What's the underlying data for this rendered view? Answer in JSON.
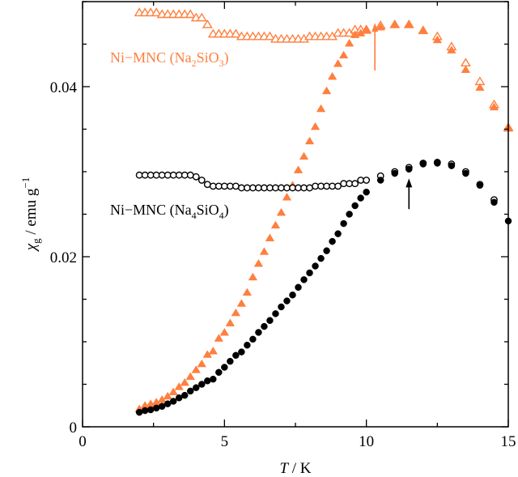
{
  "chart_data": {
    "type": "scatter",
    "xlabel_italic": "T",
    "xlabel_unit": " / K",
    "ylabel_symbol": "χ",
    "ylabel_sub": "g",
    "ylabel_unit": " / emu g",
    "ylabel_sup": "−1",
    "xlim": [
      0,
      15
    ],
    "ylim": [
      0,
      0.05
    ],
    "x_major_ticks": [
      0,
      5,
      10,
      15
    ],
    "x_tick_labels": [
      "0",
      "5",
      "10",
      "15"
    ],
    "x_minor_step": 2.5,
    "y_major_ticks": [
      0,
      0.02,
      0.04
    ],
    "y_tick_labels": [
      "0",
      "0.02",
      "0.04"
    ],
    "y_minor_step": 0.005,
    "grid": false,
    "colors": {
      "orange": "#ff7f3f",
      "black": "#000000"
    },
    "annotations": [
      {
        "text_pre": "Ni−MNC (Na",
        "sub1": "2",
        "mid": "SiO",
        "sub2": "3",
        "post": ")",
        "color": "#ff7f3f"
      },
      {
        "text_pre": "Ni−MNC (Na",
        "sub1": "4",
        "mid": "SiO",
        "sub2": "4",
        "post": ")",
        "color": "#000000"
      }
    ],
    "arrows": [
      {
        "x": 10.3,
        "y_from": 0.0419,
        "y_to": 0.0475,
        "color": "#ff7f3f"
      },
      {
        "x": 11.5,
        "y_from": 0.0256,
        "y_to": 0.0292,
        "color": "#000000"
      }
    ],
    "series": [
      {
        "marker": "triangle-open",
        "color": "#ff7f3f",
        "x": [
          2.0,
          2.2,
          2.4,
          2.6,
          2.8,
          3.0,
          3.2,
          3.4,
          3.6,
          3.8,
          4.0,
          4.2,
          4.4,
          4.6,
          4.8,
          5.0,
          5.2,
          5.4,
          5.6,
          5.8,
          6.0,
          6.2,
          6.4,
          6.6,
          6.8,
          7.0,
          7.2,
          7.4,
          7.6,
          7.8,
          8.0,
          8.2,
          8.4,
          8.6,
          8.8,
          9.0,
          9.2,
          9.4,
          9.6,
          9.8,
          10.0,
          10.5,
          11.0,
          11.5,
          12.0,
          12.5,
          13.0,
          13.5,
          14.0,
          14.5,
          15.0
        ],
        "y": [
          0.0487,
          0.0487,
          0.0487,
          0.0487,
          0.0485,
          0.0485,
          0.0485,
          0.0485,
          0.0485,
          0.0485,
          0.0481,
          0.0481,
          0.0473,
          0.0462,
          0.0462,
          0.0462,
          0.0462,
          0.0462,
          0.0459,
          0.0459,
          0.0459,
          0.0459,
          0.0459,
          0.0459,
          0.0456,
          0.0456,
          0.0456,
          0.0456,
          0.0456,
          0.0456,
          0.0459,
          0.0459,
          0.0459,
          0.0459,
          0.0459,
          0.0463,
          0.0463,
          0.0463,
          0.0467,
          0.0467,
          0.0467,
          0.0472,
          0.0473,
          0.0473,
          0.0466,
          0.0459,
          0.0447,
          0.0428,
          0.0406,
          0.0379,
          0.0352
        ]
      },
      {
        "marker": "triangle-filled",
        "color": "#ff7f3f",
        "x": [
          2.0,
          2.2,
          2.4,
          2.6,
          2.8,
          3.0,
          3.2,
          3.4,
          3.6,
          3.8,
          4.0,
          4.2,
          4.4,
          4.6,
          4.8,
          5.0,
          5.2,
          5.4,
          5.6,
          5.8,
          6.0,
          6.2,
          6.4,
          6.6,
          6.8,
          7.0,
          7.2,
          7.4,
          7.6,
          7.8,
          8.0,
          8.2,
          8.4,
          8.6,
          8.8,
          9.0,
          9.2,
          9.4,
          9.6,
          9.8,
          10.0,
          10.5,
          11.0,
          11.5,
          12.0,
          12.5,
          13.0,
          13.5,
          14.0,
          14.5,
          15.0
        ],
        "y": [
          0.0021,
          0.0025,
          0.0027,
          0.0029,
          0.0032,
          0.0036,
          0.0041,
          0.0047,
          0.0052,
          0.0059,
          0.0067,
          0.0074,
          0.0085,
          0.0089,
          0.0104,
          0.0111,
          0.0122,
          0.0134,
          0.0145,
          0.0158,
          0.0176,
          0.0192,
          0.0206,
          0.0222,
          0.0237,
          0.0252,
          0.027,
          0.0284,
          0.0302,
          0.0318,
          0.0336,
          0.0353,
          0.0374,
          0.0395,
          0.0412,
          0.0427,
          0.0437,
          0.0451,
          0.0461,
          0.0463,
          0.0466,
          0.047,
          0.0473,
          0.0473,
          0.0466,
          0.0455,
          0.0443,
          0.042,
          0.0399,
          0.0376,
          0.0351
        ]
      },
      {
        "marker": "circle-open",
        "color": "#000000",
        "x": [
          2.0,
          2.2,
          2.4,
          2.6,
          2.8,
          3.0,
          3.2,
          3.4,
          3.6,
          3.8,
          4.0,
          4.2,
          4.4,
          4.6,
          4.8,
          5.0,
          5.2,
          5.4,
          5.6,
          5.8,
          6.0,
          6.2,
          6.4,
          6.6,
          6.8,
          7.0,
          7.2,
          7.4,
          7.6,
          7.8,
          8.0,
          8.2,
          8.4,
          8.6,
          8.8,
          9.0,
          9.2,
          9.4,
          9.6,
          9.8,
          10.0,
          10.5,
          11.0,
          11.5,
          12.0,
          12.5,
          13.0,
          13.5,
          14.0,
          14.5
        ],
        "y": [
          0.0296,
          0.0296,
          0.0296,
          0.0296,
          0.0296,
          0.0296,
          0.0296,
          0.0296,
          0.0296,
          0.0296,
          0.0294,
          0.029,
          0.0285,
          0.0283,
          0.0283,
          0.0283,
          0.0283,
          0.0283,
          0.0281,
          0.0281,
          0.0281,
          0.0281,
          0.0281,
          0.0281,
          0.0281,
          0.0281,
          0.0281,
          0.0281,
          0.0281,
          0.0281,
          0.0281,
          0.0283,
          0.0283,
          0.0283,
          0.0283,
          0.0283,
          0.0286,
          0.0286,
          0.0286,
          0.029,
          0.029,
          0.0295,
          0.03,
          0.0305,
          0.031,
          0.0311,
          0.0309,
          0.03,
          0.0285,
          0.0267
        ]
      },
      {
        "marker": "circle-filled",
        "color": "#000000",
        "x": [
          2.0,
          2.2,
          2.4,
          2.6,
          2.8,
          3.0,
          3.2,
          3.4,
          3.6,
          3.8,
          4.0,
          4.2,
          4.4,
          4.6,
          4.8,
          5.0,
          5.2,
          5.4,
          5.6,
          5.8,
          6.0,
          6.2,
          6.4,
          6.6,
          6.8,
          7.0,
          7.2,
          7.4,
          7.6,
          7.8,
          8.0,
          8.2,
          8.4,
          8.6,
          8.8,
          9.0,
          9.2,
          9.4,
          9.6,
          9.8,
          10.0,
          10.5,
          11.0,
          11.5,
          12.0,
          12.5,
          13.0,
          13.5,
          14.0,
          14.5,
          15.0
        ],
        "y": [
          0.0017,
          0.0019,
          0.002,
          0.0022,
          0.0024,
          0.0027,
          0.003,
          0.0034,
          0.0037,
          0.0042,
          0.0046,
          0.005,
          0.0054,
          0.0056,
          0.0064,
          0.007,
          0.0077,
          0.0084,
          0.0088,
          0.0096,
          0.0103,
          0.0111,
          0.0118,
          0.0125,
          0.0133,
          0.0141,
          0.0148,
          0.0155,
          0.0164,
          0.0173,
          0.0181,
          0.0189,
          0.0198,
          0.0207,
          0.0218,
          0.0227,
          0.0239,
          0.025,
          0.026,
          0.0269,
          0.0276,
          0.029,
          0.0298,
          0.0303,
          0.0309,
          0.031,
          0.0307,
          0.0298,
          0.0284,
          0.0264,
          0.0242
        ]
      }
    ]
  }
}
